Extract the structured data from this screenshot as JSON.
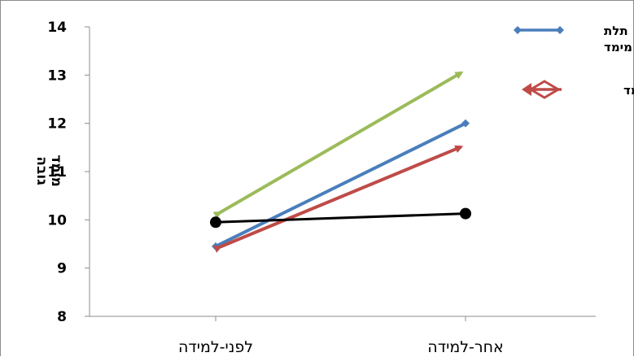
{
  "chart_data": {
    "type": "line",
    "categories": [
      "לפני-למידה",
      "אחר-למידה"
    ],
    "ylim": [
      8,
      14
    ],
    "yticks": [
      8,
      9,
      10,
      11,
      12,
      13,
      14
    ],
    "ylabel": "מימד גובה",
    "ylabel_lines": [
      "מימד",
      "גובה"
    ],
    "grid": false,
    "legend_position": "top-right",
    "series": [
      {
        "name": "תלת מימד",
        "name_lines": [
          "תלת",
          "מימד"
        ],
        "values": [
          9.45,
          12.0
        ],
        "color": "#4a7ebb",
        "marker": "diamond"
      },
      {
        "name": "דו מימד",
        "values": [
          9.4,
          11.55
        ],
        "color": "#be4b48",
        "marker": "arrow"
      },
      {
        "values": [
          10.1,
          13.1
        ],
        "color": "#9bbb59",
        "marker": "arrow"
      },
      {
        "values": [
          9.95,
          10.13
        ],
        "color": "#000000",
        "marker": "circle"
      }
    ]
  }
}
